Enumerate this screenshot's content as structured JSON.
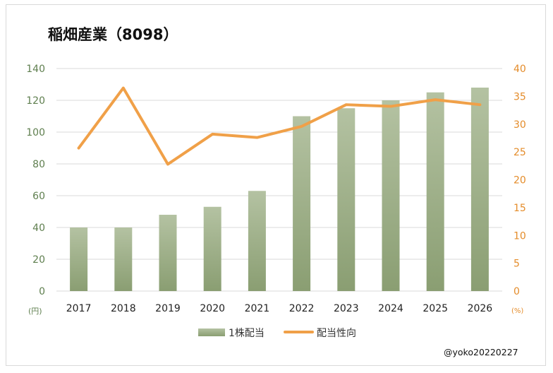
{
  "chart_data": {
    "type": "bar+line",
    "title": "稲畑産業（8098）",
    "categories": [
      "2017",
      "2018",
      "2019",
      "2020",
      "2021",
      "2022",
      "2023",
      "2024",
      "2025",
      "2026"
    ],
    "series": [
      {
        "name": "1株配当",
        "type": "bar",
        "axis": "left",
        "values": [
          40,
          40,
          48,
          53,
          63,
          110,
          115,
          120,
          125,
          128
        ]
      },
      {
        "name": "配当性向",
        "type": "line",
        "axis": "right",
        "values": [
          25.7,
          36.5,
          22.8,
          28.2,
          27.6,
          29.6,
          33.5,
          33.2,
          34.4,
          33.5
        ]
      }
    ],
    "y_left": {
      "unit": "(円)",
      "min": 0,
      "max": 140,
      "ticks": [
        0,
        20,
        40,
        60,
        80,
        100,
        120,
        140
      ]
    },
    "y_right": {
      "unit": "(%)",
      "min": 0,
      "max": 40,
      "ticks": [
        0,
        5,
        10,
        15,
        20,
        25,
        30,
        35,
        40
      ]
    },
    "grid": true,
    "legend": "bottom",
    "colors": {
      "bar_top": "#b4c2a2",
      "bar_bottom": "#8a9e72",
      "line": "#f0a048",
      "left_axis": "#5f7f4f",
      "right_axis": "#e48c2a"
    }
  },
  "credit": "@yoko20220227"
}
